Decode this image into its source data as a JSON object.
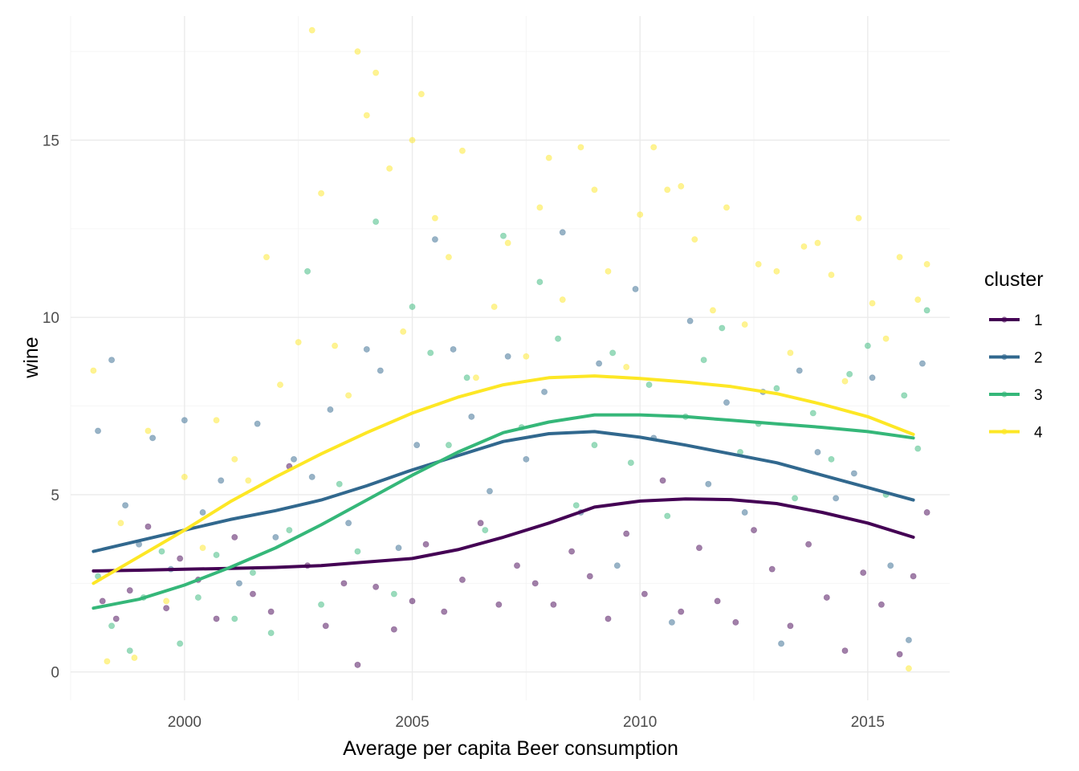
{
  "chart_data": {
    "type": "scatter",
    "title": "",
    "xlabel": "Average per capita Beer consumption",
    "ylabel": "wine",
    "xlim": [
      1997.5,
      2016.8
    ],
    "ylim": [
      -0.8,
      18.5
    ],
    "x_ticks": [
      2000,
      2005,
      2010,
      2015
    ],
    "x_tick_labels": [
      "2000",
      "2005",
      "2010",
      "2015"
    ],
    "y_ticks": [
      0,
      5,
      10,
      15
    ],
    "y_tick_labels": [
      "0",
      "5",
      "10",
      "15"
    ],
    "grid": true,
    "legend": {
      "title": "cluster",
      "position": "right"
    },
    "point_opacity": 0.5,
    "series": [
      {
        "name": "1",
        "color": "#440154",
        "smooth": {
          "x": [
            1998,
            1999,
            2000,
            2001,
            2002,
            2003,
            2004,
            2005,
            2006,
            2007,
            2008,
            2009,
            2010,
            2011,
            2012,
            2013,
            2014,
            2015,
            2016
          ],
          "y": [
            2.85,
            2.87,
            2.9,
            2.92,
            2.95,
            3.0,
            3.1,
            3.2,
            3.45,
            3.8,
            4.2,
            4.65,
            4.82,
            4.88,
            4.86,
            4.75,
            4.5,
            4.2,
            3.8
          ]
        },
        "points": [
          [
            1998.2,
            2.0
          ],
          [
            1998.5,
            1.5
          ],
          [
            1998.8,
            2.3
          ],
          [
            1999.2,
            4.1
          ],
          [
            1999.6,
            1.8
          ],
          [
            1999.9,
            3.2
          ],
          [
            2000.3,
            2.6
          ],
          [
            2000.7,
            1.5
          ],
          [
            2001.1,
            3.8
          ],
          [
            2001.5,
            2.2
          ],
          [
            2001.9,
            1.7
          ],
          [
            2002.3,
            5.8
          ],
          [
            2002.7,
            3.0
          ],
          [
            2003.1,
            1.3
          ],
          [
            2003.5,
            2.5
          ],
          [
            2003.8,
            0.2
          ],
          [
            2004.2,
            2.4
          ],
          [
            2004.6,
            1.2
          ],
          [
            2005.0,
            2.0
          ],
          [
            2005.3,
            3.6
          ],
          [
            2005.7,
            1.7
          ],
          [
            2006.1,
            2.6
          ],
          [
            2006.5,
            4.2
          ],
          [
            2006.9,
            1.9
          ],
          [
            2007.3,
            3.0
          ],
          [
            2007.7,
            2.5
          ],
          [
            2008.1,
            1.9
          ],
          [
            2008.5,
            3.4
          ],
          [
            2008.9,
            2.7
          ],
          [
            2009.3,
            1.5
          ],
          [
            2009.7,
            3.9
          ],
          [
            2010.1,
            2.2
          ],
          [
            2010.5,
            5.4
          ],
          [
            2010.9,
            1.7
          ],
          [
            2011.3,
            3.5
          ],
          [
            2011.7,
            2.0
          ],
          [
            2012.1,
            1.4
          ],
          [
            2012.5,
            4.0
          ],
          [
            2012.9,
            2.9
          ],
          [
            2013.3,
            1.3
          ],
          [
            2013.7,
            3.6
          ],
          [
            2014.1,
            2.1
          ],
          [
            2014.5,
            0.6
          ],
          [
            2014.9,
            2.8
          ],
          [
            2015.3,
            1.9
          ],
          [
            2015.7,
            0.5
          ],
          [
            2016.0,
            2.7
          ],
          [
            2016.3,
            4.5
          ]
        ]
      },
      {
        "name": "2",
        "color": "#31688E",
        "smooth": {
          "x": [
            1998,
            1999,
            2000,
            2001,
            2002,
            2003,
            2004,
            2005,
            2006,
            2007,
            2008,
            2009,
            2010,
            2011,
            2012,
            2013,
            2014,
            2015,
            2016
          ],
          "y": [
            3.4,
            3.7,
            4.0,
            4.3,
            4.55,
            4.85,
            5.25,
            5.7,
            6.1,
            6.5,
            6.72,
            6.78,
            6.62,
            6.4,
            6.15,
            5.9,
            5.55,
            5.2,
            4.85
          ]
        },
        "points": [
          [
            1998.1,
            6.8
          ],
          [
            1998.4,
            8.8
          ],
          [
            1998.7,
            4.7
          ],
          [
            1999.0,
            3.6
          ],
          [
            1999.3,
            6.6
          ],
          [
            1999.7,
            2.9
          ],
          [
            2000.0,
            7.1
          ],
          [
            2000.4,
            4.5
          ],
          [
            2000.8,
            5.4
          ],
          [
            2001.2,
            2.5
          ],
          [
            2001.6,
            7.0
          ],
          [
            2002.0,
            3.8
          ],
          [
            2002.4,
            6.0
          ],
          [
            2002.8,
            5.5
          ],
          [
            2003.2,
            7.4
          ],
          [
            2003.6,
            4.2
          ],
          [
            2004.0,
            9.1
          ],
          [
            2004.3,
            8.5
          ],
          [
            2004.7,
            3.5
          ],
          [
            2005.1,
            6.4
          ],
          [
            2005.5,
            12.2
          ],
          [
            2005.9,
            9.1
          ],
          [
            2006.3,
            7.2
          ],
          [
            2006.7,
            5.1
          ],
          [
            2007.1,
            8.9
          ],
          [
            2007.5,
            6.0
          ],
          [
            2007.9,
            7.9
          ],
          [
            2008.3,
            12.4
          ],
          [
            2008.7,
            4.5
          ],
          [
            2009.1,
            8.7
          ],
          [
            2009.5,
            3.0
          ],
          [
            2009.9,
            10.8
          ],
          [
            2010.3,
            6.6
          ],
          [
            2010.7,
            1.4
          ],
          [
            2011.1,
            9.9
          ],
          [
            2011.5,
            5.3
          ],
          [
            2011.9,
            7.6
          ],
          [
            2012.3,
            4.5
          ],
          [
            2012.7,
            7.9
          ],
          [
            2013.1,
            0.8
          ],
          [
            2013.5,
            8.5
          ],
          [
            2013.9,
            6.2
          ],
          [
            2014.3,
            4.9
          ],
          [
            2014.7,
            5.6
          ],
          [
            2015.1,
            8.3
          ],
          [
            2015.5,
            3.0
          ],
          [
            2015.9,
            0.9
          ],
          [
            2016.2,
            8.7
          ]
        ]
      },
      {
        "name": "3",
        "color": "#35B779",
        "smooth": {
          "x": [
            1998,
            1999,
            2000,
            2001,
            2002,
            2003,
            2004,
            2005,
            2006,
            2007,
            2008,
            2009,
            2010,
            2011,
            2012,
            2013,
            2014,
            2015,
            2016
          ],
          "y": [
            1.8,
            2.05,
            2.45,
            2.95,
            3.5,
            4.15,
            4.85,
            5.55,
            6.2,
            6.75,
            7.05,
            7.25,
            7.25,
            7.2,
            7.1,
            7.0,
            6.9,
            6.78,
            6.6
          ]
        },
        "points": [
          [
            1998.1,
            2.7
          ],
          [
            1998.4,
            1.3
          ],
          [
            1998.8,
            0.6
          ],
          [
            1999.1,
            2.1
          ],
          [
            1999.5,
            3.4
          ],
          [
            1999.9,
            0.8
          ],
          [
            2000.3,
            2.1
          ],
          [
            2000.7,
            3.3
          ],
          [
            2001.1,
            1.5
          ],
          [
            2001.5,
            2.8
          ],
          [
            2001.9,
            1.1
          ],
          [
            2002.3,
            4.0
          ],
          [
            2002.7,
            11.3
          ],
          [
            2003.0,
            1.9
          ],
          [
            2003.4,
            5.3
          ],
          [
            2003.8,
            3.4
          ],
          [
            2004.2,
            12.7
          ],
          [
            2004.6,
            2.2
          ],
          [
            2005.0,
            10.3
          ],
          [
            2005.4,
            9.0
          ],
          [
            2005.8,
            6.4
          ],
          [
            2006.2,
            8.3
          ],
          [
            2006.6,
            4.0
          ],
          [
            2007.0,
            12.3
          ],
          [
            2007.4,
            6.9
          ],
          [
            2007.8,
            11.0
          ],
          [
            2008.2,
            9.4
          ],
          [
            2008.6,
            4.7
          ],
          [
            2009.0,
            6.4
          ],
          [
            2009.4,
            9.0
          ],
          [
            2009.8,
            5.9
          ],
          [
            2010.2,
            8.1
          ],
          [
            2010.6,
            4.4
          ],
          [
            2011.0,
            7.2
          ],
          [
            2011.4,
            8.8
          ],
          [
            2011.8,
            9.7
          ],
          [
            2012.2,
            6.2
          ],
          [
            2012.6,
            7.0
          ],
          [
            2013.0,
            8.0
          ],
          [
            2013.4,
            4.9
          ],
          [
            2013.8,
            7.3
          ],
          [
            2014.2,
            6.0
          ],
          [
            2014.6,
            8.4
          ],
          [
            2015.0,
            9.2
          ],
          [
            2015.4,
            5.0
          ],
          [
            2015.8,
            7.8
          ],
          [
            2016.1,
            6.3
          ],
          [
            2016.3,
            10.2
          ]
        ]
      },
      {
        "name": "4",
        "color": "#FDE725",
        "smooth": {
          "x": [
            1998,
            1999,
            2000,
            2001,
            2002,
            2003,
            2004,
            2005,
            2006,
            2007,
            2008,
            2009,
            2010,
            2011,
            2012,
            2013,
            2014,
            2015,
            2016
          ],
          "y": [
            2.5,
            3.25,
            4.0,
            4.8,
            5.5,
            6.15,
            6.75,
            7.3,
            7.75,
            8.1,
            8.3,
            8.35,
            8.28,
            8.18,
            8.05,
            7.85,
            7.55,
            7.2,
            6.7
          ]
        },
        "points": [
          [
            1998.0,
            8.5
          ],
          [
            1998.3,
            0.3
          ],
          [
            1998.6,
            4.2
          ],
          [
            1998.9,
            0.4
          ],
          [
            1999.2,
            6.8
          ],
          [
            1999.6,
            2.0
          ],
          [
            2000.0,
            5.5
          ],
          [
            2000.4,
            3.5
          ],
          [
            2000.7,
            7.1
          ],
          [
            2001.1,
            6.0
          ],
          [
            2001.4,
            5.4
          ],
          [
            2001.8,
            11.7
          ],
          [
            2002.1,
            8.1
          ],
          [
            2002.5,
            9.3
          ],
          [
            2002.8,
            18.1
          ],
          [
            2003.0,
            13.5
          ],
          [
            2003.3,
            9.2
          ],
          [
            2003.6,
            7.8
          ],
          [
            2003.8,
            17.5
          ],
          [
            2004.0,
            15.7
          ],
          [
            2004.2,
            16.9
          ],
          [
            2004.5,
            14.2
          ],
          [
            2004.8,
            9.6
          ],
          [
            2005.0,
            15.0
          ],
          [
            2005.2,
            16.3
          ],
          [
            2005.5,
            12.8
          ],
          [
            2005.8,
            11.7
          ],
          [
            2006.1,
            14.7
          ],
          [
            2006.4,
            8.3
          ],
          [
            2006.8,
            10.3
          ],
          [
            2007.1,
            12.1
          ],
          [
            2007.5,
            8.9
          ],
          [
            2007.8,
            13.1
          ],
          [
            2008.0,
            14.5
          ],
          [
            2008.3,
            10.5
          ],
          [
            2008.7,
            14.8
          ],
          [
            2009.0,
            13.6
          ],
          [
            2009.3,
            11.3
          ],
          [
            2009.7,
            8.6
          ],
          [
            2010.0,
            12.9
          ],
          [
            2010.3,
            14.8
          ],
          [
            2010.6,
            13.6
          ],
          [
            2010.9,
            13.7
          ],
          [
            2011.2,
            12.2
          ],
          [
            2011.6,
            10.2
          ],
          [
            2011.9,
            13.1
          ],
          [
            2012.3,
            9.8
          ],
          [
            2012.6,
            11.5
          ],
          [
            2013.0,
            11.3
          ],
          [
            2013.3,
            9.0
          ],
          [
            2013.6,
            12.0
          ],
          [
            2013.9,
            12.1
          ],
          [
            2014.2,
            11.2
          ],
          [
            2014.5,
            8.2
          ],
          [
            2014.8,
            12.8
          ],
          [
            2015.1,
            10.4
          ],
          [
            2015.4,
            9.4
          ],
          [
            2015.7,
            11.7
          ],
          [
            2015.9,
            0.1
          ],
          [
            2016.1,
            10.5
          ],
          [
            2016.3,
            11.5
          ]
        ]
      }
    ]
  }
}
